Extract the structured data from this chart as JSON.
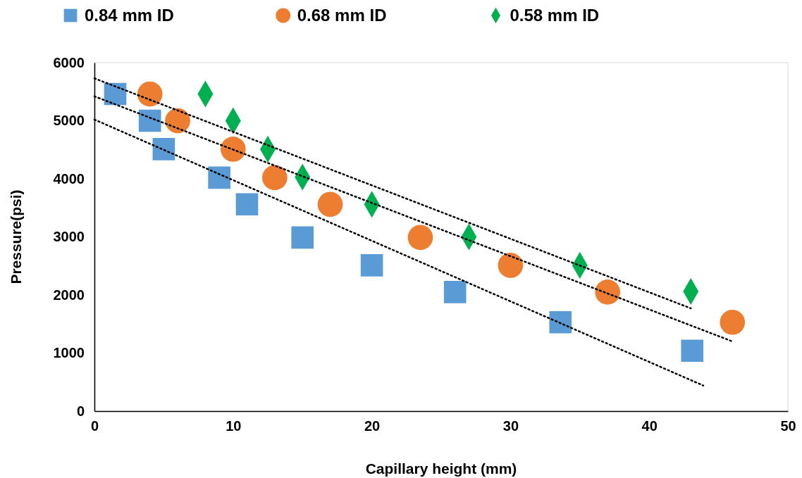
{
  "chart_data": {
    "type": "scatter",
    "xlabel": "Capillary height (mm)",
    "ylabel": "Pressure(psi)",
    "xlim": [
      0,
      50
    ],
    "xticks": [
      0,
      10,
      20,
      30,
      40,
      50
    ],
    "ylim": [
      0,
      6000
    ],
    "yticks": [
      0,
      1000,
      2000,
      3000,
      4000,
      5000,
      6000
    ],
    "grid": false,
    "legend": "top",
    "series": [
      {
        "name": "0.84 mm ID",
        "color": "#5b9bd5",
        "marker": "square",
        "x": [
          1.5,
          4,
          5,
          9,
          11,
          15,
          20,
          26,
          33.6,
          43.1
        ],
        "values": [
          5460,
          5000,
          4510,
          4020,
          3560,
          2990,
          2510,
          2050,
          1530,
          1040
        ]
      },
      {
        "name": "0.68 mm ID",
        "color": "#ed7d31",
        "marker": "circle",
        "x": [
          4,
          6,
          10,
          13,
          17,
          23.5,
          30,
          37,
          46
        ],
        "values": [
          5460,
          5000,
          4510,
          4020,
          3560,
          2990,
          2510,
          2050,
          1530
        ]
      },
      {
        "name": "0.58 mm ID",
        "color": "#00b050",
        "marker": "diamond",
        "x": [
          8,
          10,
          12.5,
          15,
          20,
          27,
          35,
          43
        ],
        "values": [
          5460,
          5000,
          4510,
          4030,
          3560,
          3000,
          2510,
          2060
        ]
      },
      {
        "type": "line",
        "color": "#000000",
        "line_style": "dotted",
        "marker": "none",
        "x": [
          0,
          43.9
        ],
        "values": [
          5020,
          440
        ]
      },
      {
        "type": "line",
        "color": "#000000",
        "line_style": "dotted",
        "marker": "none",
        "x": [
          0,
          46
        ],
        "values": [
          5420,
          1200
        ]
      },
      {
        "type": "line",
        "color": "#000000",
        "line_style": "dotted",
        "marker": "none",
        "x": [
          0,
          43
        ],
        "values": [
          5730,
          1770
        ]
      }
    ]
  }
}
